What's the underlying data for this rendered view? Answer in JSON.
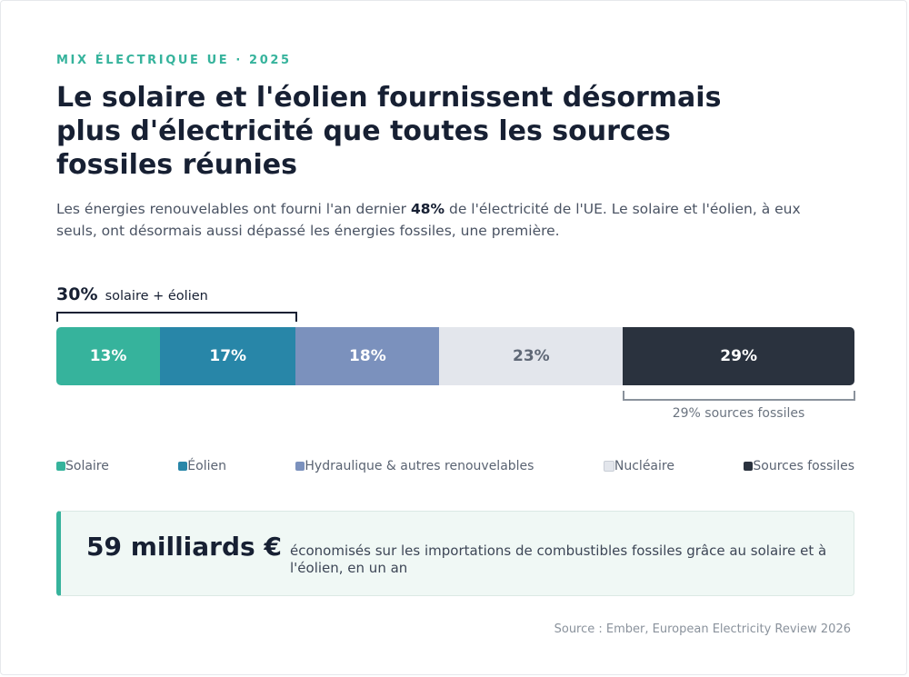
{
  "header": {
    "eyebrow": "MIX ÉLECTRIQUE UE · 2025",
    "title": "Le solaire et l'éolien fournissent désormais plus d'électricité que toutes les sources fossiles réunies",
    "subtitle_before": "Les énergies renouvelables ont fourni l'an dernier ",
    "subtitle_highlight": "48%",
    "subtitle_after": " de l'électricité de l'UE. Le solaire et l'éolien, à eux seuls, ont désormais aussi dépassé les énergies fossiles, une première."
  },
  "annotations": {
    "solar_wind_value": "30%",
    "solar_wind_label": "solaire + éolien",
    "fossil_label": "29% sources fossiles"
  },
  "chart_data": {
    "type": "bar",
    "orientation": "horizontal-stacked",
    "unit": "%",
    "series": [
      {
        "name": "Solaire",
        "value": 13,
        "label": "13%",
        "color": "#36b39c",
        "text_color": "#ffffff"
      },
      {
        "name": "Éolien",
        "value": 17,
        "label": "17%",
        "color": "#2886a8",
        "text_color": "#ffffff"
      },
      {
        "name": "Hydraulique & autres renouvelables",
        "value": 18,
        "label": "18%",
        "color": "#7b91bd",
        "text_color": "#ffffff"
      },
      {
        "name": "Nucléaire",
        "value": 23,
        "label": "23%",
        "color": "#e3e6ec",
        "text_color": "#5f6876"
      },
      {
        "name": "Sources fossiles",
        "value": 29,
        "label": "29%",
        "color": "#2a323e",
        "text_color": "#ffffff"
      }
    ]
  },
  "callout": {
    "value": "59 milliards €",
    "text": "économisés sur les importations de combustibles fossiles grâce au solaire et à l'éolien, en un an"
  },
  "footer": {
    "source": "Source : Ember, European Electricity Review 2026"
  },
  "colors": {
    "accent": "#36b39c",
    "ink": "#172033"
  }
}
